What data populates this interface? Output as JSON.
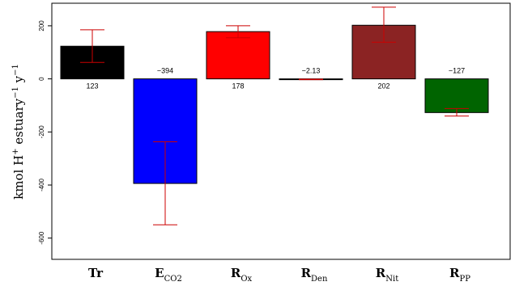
{
  "chart_data": {
    "type": "bar",
    "title": "",
    "ylabel": {
      "base": "kmol H",
      "sup1": "+",
      "mid": " estuary",
      "sup2": "−1",
      "mid2": " y",
      "sup3": "−1"
    },
    "ylim": [
      -680,
      285
    ],
    "yticks": [
      200,
      0,
      -200,
      -400,
      -600
    ],
    "yticks_labels": [
      "200",
      "0",
      "-200",
      "-400",
      "-600"
    ],
    "grid": false,
    "legend": "none",
    "categories": [
      {
        "main": "Tr",
        "sub": ""
      },
      {
        "main": "E",
        "sub": "CO2"
      },
      {
        "main": "R",
        "sub": "Ox"
      },
      {
        "main": "R",
        "sub": "Den"
      },
      {
        "main": "R",
        "sub": "Nit"
      },
      {
        "main": "R",
        "sub": "PP"
      }
    ],
    "values": [
      123,
      -394,
      178,
      -2.13,
      202,
      -127
    ],
    "value_labels": [
      "123",
      "−394",
      "178",
      "−2.13",
      "202",
      "−127"
    ],
    "error_low": [
      62,
      -550,
      155,
      -3,
      138,
      -140
    ],
    "error_high": [
      185,
      -237,
      200,
      -1,
      270,
      -112
    ],
    "colors": [
      "#000000",
      "#0000ff",
      "#ff0000",
      "#000000",
      "#8b2323",
      "#006400"
    ],
    "error_color": "#cc0000"
  }
}
